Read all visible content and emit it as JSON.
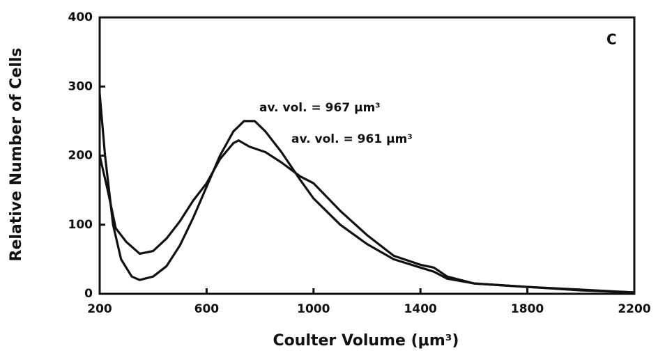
{
  "chart_data": {
    "type": "line",
    "xlabel": "Coulter Volume (μm³)",
    "ylabel": "Relative Number of Cells",
    "annotations": [
      "av. vol. = 967 μm³",
      "av. vol. = 961 μm³",
      "C"
    ],
    "series": [
      {
        "color": "#111111",
        "x": [
          200,
          220,
          250,
          280,
          320,
          350,
          400,
          450,
          500,
          550,
          600,
          650,
          700,
          740,
          780,
          820,
          880,
          950,
          1000,
          1100,
          1200,
          1300,
          1400,
          1450,
          1500,
          1600,
          1800,
          2000,
          2200
        ],
        "values": [
          290,
          200,
          100,
          50,
          25,
          20,
          25,
          40,
          70,
          110,
          155,
          200,
          235,
          250,
          250,
          235,
          205,
          165,
          138,
          100,
          72,
          50,
          38,
          32,
          22,
          15,
          10,
          5,
          2
        ]
      },
      {
        "color": "#111111",
        "x": [
          200,
          230,
          260,
          300,
          350,
          400,
          450,
          500,
          550,
          600,
          650,
          700,
          720,
          760,
          820,
          880,
          950,
          1000,
          1100,
          1200,
          1300,
          1400,
          1450,
          1500,
          1600,
          1800,
          2000,
          2200
        ],
        "values": [
          200,
          150,
          95,
          75,
          58,
          62,
          80,
          105,
          135,
          160,
          195,
          218,
          222,
          213,
          205,
          190,
          170,
          160,
          120,
          85,
          55,
          42,
          38,
          25,
          15,
          10,
          6,
          2
        ]
      }
    ],
    "xlim": [
      200,
      2200
    ],
    "xticks": [
      200,
      600,
      1000,
      1400,
      1800,
      2200
    ],
    "ylim": [
      0,
      400
    ],
    "yticks": [
      0,
      100,
      200,
      300,
      400
    ],
    "grid": false
  }
}
